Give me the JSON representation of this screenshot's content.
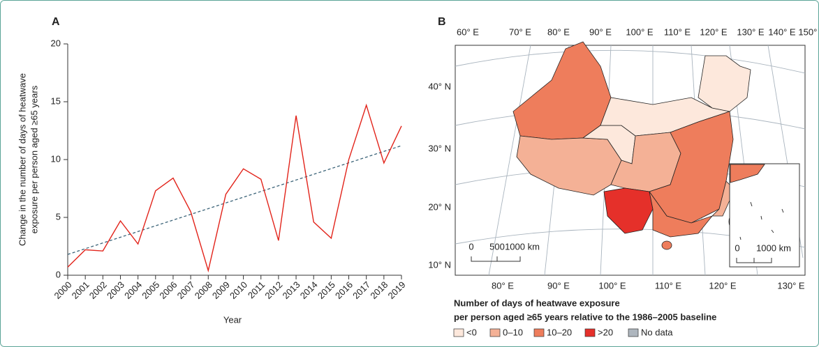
{
  "chart_data": [
    {
      "type": "line",
      "label": "A",
      "x": [
        2000,
        2001,
        2002,
        2003,
        2004,
        2005,
        2006,
        2007,
        2008,
        2009,
        2010,
        2011,
        2012,
        2013,
        2014,
        2015,
        2016,
        2017,
        2018,
        2019
      ],
      "values": [
        0.7,
        2.2,
        2.1,
        4.7,
        2.7,
        7.3,
        8.4,
        5.5,
        0.4,
        7.0,
        9.2,
        8.3,
        3.0,
        13.8,
        4.6,
        3.2,
        10.0,
        14.7,
        9.7,
        12.9
      ],
      "color": "#e2231a",
      "trend": {
        "x": [
          2000,
          2019
        ],
        "values": [
          1.8,
          11.2
        ],
        "color": "#3b6378"
      },
      "xlim": [
        2000,
        2019
      ],
      "xticks": [
        2000,
        2001,
        2002,
        2003,
        2004,
        2005,
        2006,
        2007,
        2008,
        2009,
        2010,
        2011,
        2012,
        2013,
        2014,
        2015,
        2016,
        2017,
        2018,
        2019
      ],
      "ylim": [
        0,
        20
      ],
      "yticks": [
        0,
        5,
        10,
        15,
        20
      ],
      "xlabel": "Year",
      "ylabel": [
        "Change in the number of days of heatwave",
        "exposure per person aged ≥65 years"
      ]
    }
  ],
  "map": {
    "label": "B",
    "lon_top": [
      "60° E",
      "70° E",
      "80° E",
      "90° E",
      "100° E",
      "110° E",
      "120° E",
      "130° E",
      "140° E",
      "150° E"
    ],
    "lon_bottom": [
      "80° E",
      "90° E",
      "100° E",
      "110° E",
      "120° E",
      "130° E"
    ],
    "lat_left": [
      "40° N",
      "30° N",
      "20° N",
      "10° N"
    ],
    "scale_bar": [
      "0",
      "500",
      "1000 km"
    ],
    "inset_scale_bar": [
      "0",
      "1000 km"
    ],
    "legend_title": [
      "Number of days of heatwave exposure",
      "per person aged ≥65 years relative to the 1986–2005 baseline"
    ],
    "legend": [
      {
        "label": "<0",
        "color": "#fde8dc"
      },
      {
        "label": "0–10",
        "color": "#f4b196"
      },
      {
        "label": "10–20",
        "color": "#ee7d5c"
      },
      {
        "label": ">20",
        "color": "#e5302a"
      },
      {
        "label": "No data",
        "color": "#aeb6be"
      }
    ]
  }
}
